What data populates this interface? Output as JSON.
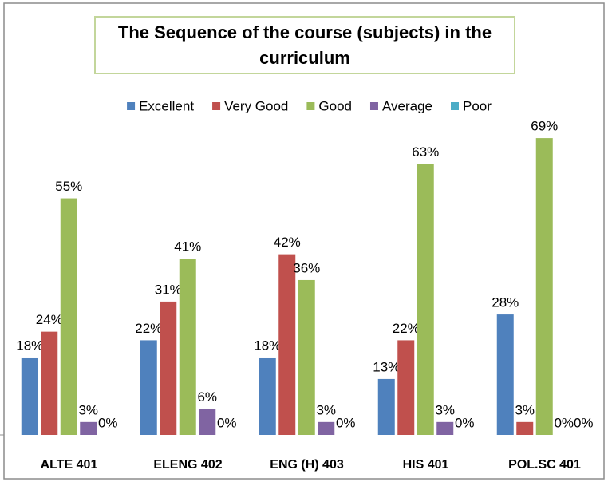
{
  "chart_data": {
    "type": "bar",
    "title": "The Sequence of the course (subjects) in the curriculum",
    "categories": [
      "ALTE 401",
      "ELENG 402",
      "ENG (H) 403",
      "HIS 401",
      "POL.SC 401"
    ],
    "series": [
      {
        "name": "Excellent",
        "color": "#4f81bd",
        "values": [
          18,
          22,
          18,
          13,
          28
        ],
        "value_labels": [
          "18%",
          "22%",
          "18%",
          "13%",
          "28%"
        ]
      },
      {
        "name": "Very Good",
        "color": "#c0504d",
        "values": [
          24,
          31,
          42,
          22,
          3
        ],
        "value_labels": [
          "24%",
          "31%",
          "42%",
          "22%",
          "3%"
        ]
      },
      {
        "name": "Good",
        "color": "#9bbb59",
        "values": [
          55,
          41,
          36,
          63,
          69
        ],
        "value_labels": [
          "55%",
          "41%",
          "36%",
          "63%",
          "69%"
        ]
      },
      {
        "name": "Average",
        "color": "#8064a2",
        "values": [
          3,
          6,
          3,
          3,
          0
        ],
        "value_labels": [
          "3%",
          "6%",
          "3%",
          "3%",
          "0%"
        ]
      },
      {
        "name": "Poor",
        "color": "#4bacc6",
        "values": [
          0,
          0,
          0,
          0,
          0
        ],
        "value_labels": [
          "0%",
          "0%",
          "0%",
          "0%",
          "0%"
        ]
      }
    ],
    "legend": "top"
  }
}
